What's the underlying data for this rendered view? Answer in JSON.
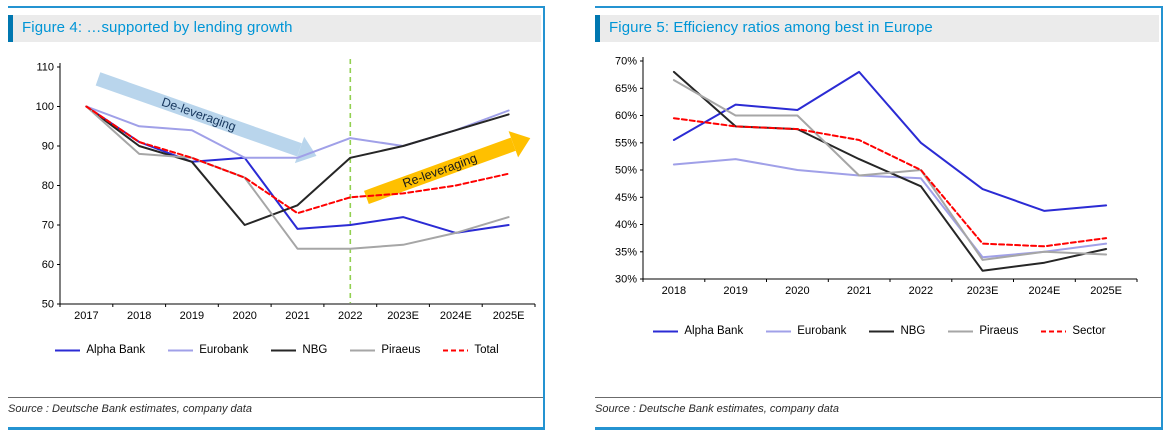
{
  "chart_data": [
    {
      "type": "line",
      "title": "Figure 4: …supported by lending growth",
      "source": "Source : Deutsche Bank estimates, company data",
      "categories": [
        "2017",
        "2018",
        "2019",
        "2020",
        "2021",
        "2022",
        "2023E",
        "2024E",
        "2025E"
      ],
      "ylim": [
        50,
        110
      ],
      "ytick_step": 10,
      "y_suffix": "",
      "grid": false,
      "legend_position": "bottom",
      "series": [
        {
          "name": "Alpha Bank",
          "color": "#2b2bd4",
          "dash": "",
          "values": [
            100,
            91,
            86,
            87,
            69,
            70,
            72,
            68,
            70
          ]
        },
        {
          "name": "Eurobank",
          "color": "#a0a0e8",
          "dash": "",
          "values": [
            100,
            95,
            94,
            87,
            87,
            92,
            90,
            94,
            99
          ]
        },
        {
          "name": "NBG",
          "color": "#262626",
          "dash": "",
          "values": [
            100,
            90,
            86,
            70,
            75,
            87,
            90,
            94,
            98
          ]
        },
        {
          "name": "Piraeus",
          "color": "#a6a6a6",
          "dash": "",
          "values": [
            100,
            88,
            87,
            82,
            64,
            64,
            65,
            68,
            72
          ]
        },
        {
          "name": "Total",
          "color": "#ff0000",
          "dash": "5 3",
          "values": [
            100,
            91,
            87,
            82,
            73,
            77,
            78,
            80,
            83
          ]
        }
      ],
      "vline": {
        "category": "2022",
        "color": "#92d050"
      },
      "annotations": [
        {
          "text": "De-leveraging",
          "color": "#b9d5ec",
          "text_color": "#17375e",
          "from": [
            0.08,
            0.05
          ],
          "to": [
            0.54,
            0.375
          ]
        },
        {
          "text": "Re-leveraging",
          "color": "#ffc000",
          "text_color": "#1a1a1a",
          "from": [
            0.645,
            0.55
          ],
          "to": [
            0.99,
            0.3
          ]
        }
      ]
    },
    {
      "type": "line",
      "title": "Figure 5: Efficiency ratios among best in Europe",
      "source": "Source : Deutsche Bank estimates, company data",
      "categories": [
        "2018",
        "2019",
        "2020",
        "2021",
        "2022",
        "2023E",
        "2024E",
        "2025E"
      ],
      "ylim": [
        30,
        70
      ],
      "ytick_step": 5,
      "y_suffix": "%",
      "grid": false,
      "legend_position": "bottom",
      "series": [
        {
          "name": "Alpha Bank",
          "color": "#2b2bd4",
          "dash": "",
          "values": [
            55.5,
            62,
            61,
            68,
            55,
            46.5,
            42.5,
            43.5
          ]
        },
        {
          "name": "Eurobank",
          "color": "#a0a0e8",
          "dash": "",
          "values": [
            51,
            52,
            50,
            49,
            48.5,
            34,
            35,
            36.5
          ]
        },
        {
          "name": "NBG",
          "color": "#262626",
          "dash": "",
          "values": [
            68,
            58,
            57.5,
            52,
            47,
            31.5,
            33,
            35.5
          ]
        },
        {
          "name": "Piraeus",
          "color": "#a6a6a6",
          "dash": "",
          "values": [
            66.5,
            60,
            60,
            49,
            50,
            33.5,
            35,
            34.5
          ]
        },
        {
          "name": "Sector",
          "color": "#ff0000",
          "dash": "5 3",
          "values": [
            59.5,
            58,
            57.5,
            55.5,
            50,
            36.5,
            36,
            37.5
          ]
        }
      ]
    }
  ],
  "styles": {
    "accent_blue": "#2493d1",
    "title_text": "#0095d6",
    "title_accent": "#0077b0",
    "title_bg": "#ebebeb",
    "vline_green": "#92d050"
  }
}
